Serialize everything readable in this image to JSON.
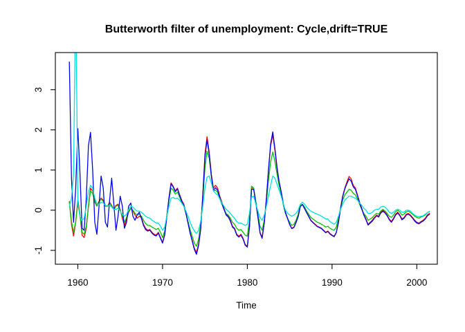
{
  "figure": {
    "background": "#ffffff"
  },
  "chart_data": {
    "type": "line",
    "title": "Butterworth filter of unemployment: Cycle,drift=TRUE",
    "xlabel": "Time",
    "ylabel": "",
    "xlim": [
      1957.35,
      2002.42
    ],
    "ylim": [
      -1.345,
      3.925
    ],
    "x_ticks": [
      1960,
      1970,
      1980,
      1990,
      2000
    ],
    "y_ticks": [
      -1,
      0,
      1,
      2,
      3
    ],
    "grid": false,
    "legend": "none",
    "axis_color": "#000000",
    "x_start": 1959.0,
    "x_step": 0.25,
    "series": [
      {
        "name": "red-line",
        "color": "#ff0000",
        "values": [
          0.22,
          -0.35,
          -0.64,
          -0.3,
          0.26,
          -0.1,
          -0.62,
          -0.68,
          -0.45,
          0.1,
          0.55,
          0.48,
          0.25,
          0.12,
          0.22,
          0.3,
          0.25,
          0.12,
          0.1,
          0.2,
          0.12,
          0.02,
          0.12,
          0.15,
          0.02,
          -0.2,
          -0.38,
          -0.22,
          -0.05,
          0.05,
          -0.02,
          -0.12,
          -0.2,
          -0.15,
          -0.18,
          -0.35,
          -0.45,
          -0.5,
          -0.48,
          -0.55,
          -0.6,
          -0.62,
          -0.55,
          -0.68,
          -0.8,
          -0.6,
          -0.15,
          0.3,
          0.68,
          0.6,
          0.48,
          0.55,
          0.4,
          0.25,
          0.15,
          -0.05,
          -0.3,
          -0.55,
          -0.75,
          -0.95,
          -1.05,
          -0.85,
          -0.45,
          0.4,
          1.4,
          1.83,
          1.45,
          0.9,
          0.55,
          0.62,
          0.55,
          0.35,
          0.2,
          0.05,
          -0.1,
          -0.15,
          -0.25,
          -0.4,
          -0.45,
          -0.6,
          -0.65,
          -0.6,
          -0.7,
          -0.85,
          -0.9,
          -0.4,
          0.55,
          0.55,
          0.2,
          -0.15,
          -0.55,
          -0.68,
          -0.3,
          0.3,
          1.0,
          1.6,
          1.88,
          1.5,
          1.05,
          0.7,
          0.45,
          0.15,
          -0.05,
          -0.2,
          -0.35,
          -0.45,
          -0.42,
          -0.3,
          -0.15,
          0.1,
          0.15,
          0.05,
          -0.05,
          -0.15,
          -0.25,
          -0.3,
          -0.35,
          -0.4,
          -0.42,
          -0.45,
          -0.5,
          -0.55,
          -0.52,
          -0.58,
          -0.62,
          -0.65,
          -0.55,
          -0.3,
          0.05,
          0.35,
          0.55,
          0.7,
          0.84,
          0.78,
          0.62,
          0.55,
          0.38,
          0.2,
          0.05,
          -0.1,
          -0.22,
          -0.35,
          -0.3,
          -0.25,
          -0.18,
          -0.12,
          -0.15,
          -0.05,
          0.0,
          -0.05,
          -0.12,
          -0.22,
          -0.28,
          -0.2,
          -0.1,
          -0.05,
          -0.12,
          -0.22,
          -0.18,
          -0.1,
          -0.08,
          -0.12,
          -0.18,
          -0.25,
          -0.3,
          -0.32,
          -0.28,
          -0.25,
          -0.2,
          -0.12,
          -0.08
        ]
      },
      {
        "name": "green-line",
        "color": "#00c400",
        "values": [
          0.2,
          -0.28,
          -0.55,
          -0.28,
          0.18,
          -0.12,
          -0.55,
          -0.6,
          -0.4,
          0.08,
          0.48,
          0.42,
          0.2,
          0.1,
          0.2,
          0.28,
          0.22,
          0.1,
          0.1,
          0.18,
          0.1,
          0.02,
          0.1,
          0.12,
          0.0,
          -0.15,
          -0.3,
          -0.18,
          -0.02,
          0.05,
          0.0,
          -0.08,
          -0.12,
          -0.1,
          -0.15,
          -0.25,
          -0.33,
          -0.38,
          -0.38,
          -0.42,
          -0.45,
          -0.48,
          -0.45,
          -0.55,
          -0.68,
          -0.52,
          -0.12,
          0.25,
          0.55,
          0.5,
          0.4,
          0.45,
          0.33,
          0.2,
          0.1,
          -0.08,
          -0.28,
          -0.48,
          -0.65,
          -0.82,
          -0.9,
          -0.72,
          -0.35,
          0.3,
          1.05,
          1.47,
          1.3,
          0.85,
          0.48,
          0.5,
          0.45,
          0.28,
          0.15,
          0.02,
          -0.08,
          -0.12,
          -0.2,
          -0.3,
          -0.35,
          -0.45,
          -0.5,
          -0.48,
          -0.55,
          -0.62,
          -0.65,
          -0.25,
          0.6,
          0.55,
          0.22,
          -0.08,
          -0.4,
          -0.5,
          -0.25,
          0.2,
          0.75,
          1.2,
          1.45,
          1.22,
          0.9,
          0.62,
          0.4,
          0.12,
          -0.08,
          -0.2,
          -0.3,
          -0.38,
          -0.35,
          -0.25,
          -0.1,
          0.12,
          0.15,
          0.08,
          -0.02,
          -0.1,
          -0.18,
          -0.22,
          -0.26,
          -0.3,
          -0.32,
          -0.35,
          -0.38,
          -0.42,
          -0.4,
          -0.45,
          -0.48,
          -0.5,
          -0.42,
          -0.2,
          0.05,
          0.25,
          0.38,
          0.45,
          0.52,
          0.5,
          0.42,
          0.38,
          0.28,
          0.15,
          0.02,
          -0.08,
          -0.15,
          -0.25,
          -0.22,
          -0.18,
          -0.12,
          -0.08,
          -0.1,
          -0.02,
          0.02,
          -0.02,
          -0.08,
          -0.15,
          -0.18,
          -0.12,
          -0.04,
          0.0,
          -0.05,
          -0.12,
          -0.1,
          -0.04,
          -0.02,
          -0.06,
          -0.1,
          -0.15,
          -0.18,
          -0.2,
          -0.17,
          -0.15,
          -0.12,
          -0.06,
          -0.03
        ]
      },
      {
        "name": "blue-line",
        "color": "#0000ee",
        "values": [
          3.69,
          0.8,
          -0.3,
          0.55,
          2.03,
          0.95,
          -0.45,
          -0.5,
          0.3,
          1.6,
          1.94,
          1.0,
          -0.3,
          -0.6,
          0.1,
          0.85,
          0.55,
          -0.3,
          -0.42,
          0.25,
          0.8,
          0.15,
          -0.5,
          -0.15,
          0.35,
          0.1,
          -0.45,
          -0.3,
          0.1,
          0.18,
          -0.15,
          -0.25,
          -0.12,
          -0.05,
          -0.2,
          -0.38,
          -0.48,
          -0.52,
          -0.5,
          -0.57,
          -0.62,
          -0.64,
          -0.57,
          -0.7,
          -0.82,
          -0.62,
          -0.17,
          0.28,
          0.66,
          0.58,
          0.46,
          0.53,
          0.38,
          0.23,
          0.13,
          -0.07,
          -0.32,
          -0.57,
          -0.77,
          -0.98,
          -1.1,
          -0.88,
          -0.48,
          0.36,
          1.32,
          1.75,
          1.4,
          0.86,
          0.5,
          0.56,
          0.5,
          0.32,
          0.17,
          0.02,
          -0.12,
          -0.17,
          -0.27,
          -0.42,
          -0.47,
          -0.62,
          -0.67,
          -0.62,
          -0.72,
          -0.87,
          -0.92,
          -0.42,
          0.52,
          0.52,
          0.18,
          -0.17,
          -0.57,
          -0.7,
          -0.32,
          0.28,
          1.0,
          1.65,
          1.95,
          1.55,
          1.08,
          0.72,
          0.46,
          0.16,
          -0.06,
          -0.21,
          -0.36,
          -0.46,
          -0.43,
          -0.31,
          -0.16,
          0.09,
          0.14,
          0.04,
          -0.06,
          -0.16,
          -0.26,
          -0.31,
          -0.36,
          -0.41,
          -0.43,
          -0.46,
          -0.51,
          -0.56,
          -0.53,
          -0.59,
          -0.63,
          -0.66,
          -0.56,
          -0.31,
          0.03,
          0.33,
          0.53,
          0.66,
          0.78,
          0.73,
          0.58,
          0.52,
          0.36,
          0.18,
          0.03,
          -0.12,
          -0.24,
          -0.37,
          -0.32,
          -0.27,
          -0.2,
          -0.14,
          -0.17,
          -0.07,
          -0.02,
          -0.07,
          -0.14,
          -0.24,
          -0.3,
          -0.22,
          -0.12,
          -0.07,
          -0.14,
          -0.24,
          -0.2,
          -0.12,
          -0.1,
          -0.14,
          -0.2,
          -0.27,
          -0.32,
          -0.34,
          -0.3,
          -0.27,
          -0.22,
          -0.14,
          -0.1
        ]
      },
      {
        "name": "cyan-line",
        "color": "#00e0e0",
        "values": [
          0.1,
          0.3,
          0.9,
          5.5,
          0.15,
          -0.15,
          -0.25,
          -0.2,
          0.1,
          0.45,
          0.62,
          0.55,
          0.3,
          0.15,
          0.15,
          0.2,
          0.18,
          0.12,
          0.1,
          0.12,
          0.08,
          0.02,
          0.02,
          0.05,
          -0.02,
          -0.1,
          -0.15,
          -0.1,
          0.02,
          0.1,
          0.08,
          0.02,
          -0.02,
          -0.02,
          -0.05,
          -0.1,
          -0.15,
          -0.18,
          -0.2,
          -0.25,
          -0.28,
          -0.32,
          -0.32,
          -0.4,
          -0.5,
          -0.42,
          -0.15,
          0.1,
          0.3,
          0.32,
          0.28,
          0.3,
          0.25,
          0.18,
          0.1,
          -0.02,
          -0.15,
          -0.3,
          -0.42,
          -0.52,
          -0.58,
          -0.5,
          -0.28,
          0.1,
          0.55,
          0.82,
          0.85,
          0.68,
          0.48,
          0.42,
          0.38,
          0.28,
          0.18,
          0.1,
          0.02,
          -0.02,
          -0.08,
          -0.15,
          -0.2,
          -0.28,
          -0.32,
          -0.32,
          -0.35,
          -0.38,
          -0.35,
          -0.08,
          0.32,
          0.35,
          0.15,
          -0.02,
          -0.18,
          -0.25,
          -0.12,
          0.1,
          0.35,
          0.62,
          0.85,
          0.8,
          0.65,
          0.5,
          0.35,
          0.15,
          0.0,
          -0.08,
          -0.12,
          -0.15,
          -0.12,
          -0.08,
          0.0,
          0.15,
          0.2,
          0.15,
          0.08,
          0.02,
          -0.02,
          -0.05,
          -0.08,
          -0.1,
          -0.12,
          -0.15,
          -0.18,
          -0.22,
          -0.22,
          -0.28,
          -0.32,
          -0.35,
          -0.3,
          -0.15,
          0.02,
          0.15,
          0.25,
          0.3,
          0.35,
          0.35,
          0.32,
          0.3,
          0.25,
          0.18,
          0.12,
          0.05,
          0.0,
          -0.08,
          -0.08,
          -0.05,
          0.0,
          0.02,
          0.02,
          0.08,
          0.1,
          0.08,
          0.02,
          -0.05,
          -0.08,
          -0.05,
          0.0,
          0.02,
          0.0,
          -0.05,
          -0.05,
          0.0,
          0.0,
          -0.02,
          -0.08,
          -0.12,
          -0.15,
          -0.16,
          -0.15,
          -0.14,
          -0.1,
          -0.06,
          -0.04
        ]
      }
    ]
  }
}
